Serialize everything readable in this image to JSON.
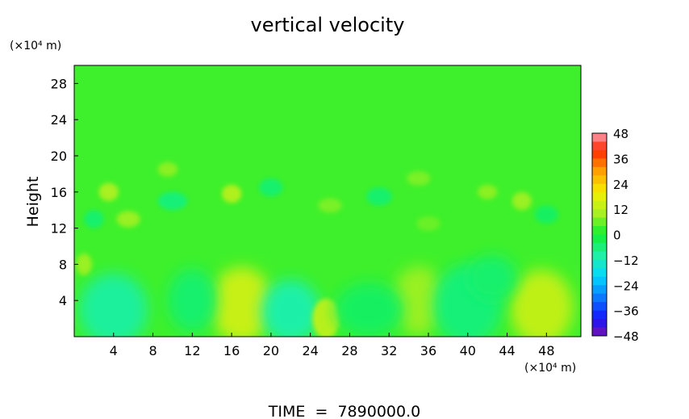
{
  "chart_data": {
    "type": "heatmap",
    "title": "vertical velocity",
    "ylabel": "Height",
    "xunit": "(×10⁴ m)",
    "yunit": "(×10⁴ m)",
    "footer": "TIME  =  7890000.0",
    "xlim": [
      0,
      51.5
    ],
    "ylim": [
      0,
      30
    ],
    "xticks": [
      4,
      8,
      12,
      16,
      20,
      24,
      28,
      32,
      36,
      40,
      44,
      48
    ],
    "yticks": [
      4,
      8,
      12,
      16,
      20,
      24,
      28
    ],
    "colorbar": {
      "ticks": [
        48,
        36,
        24,
        12,
        0,
        -12,
        -24,
        -36,
        -48
      ],
      "min": -48,
      "max": 48
    },
    "background_value": 3,
    "features": [
      {
        "x": 17.0,
        "y": 3.5,
        "rx": 3.2,
        "ry": 4.2,
        "value": 14
      },
      {
        "x": 47.5,
        "y": 3.2,
        "rx": 3.2,
        "ry": 4.2,
        "value": 13
      },
      {
        "x": 4.0,
        "y": 3.0,
        "rx": 3.5,
        "ry": 4.0,
        "value": -9
      },
      {
        "x": 22.0,
        "y": 2.8,
        "rx": 3.0,
        "ry": 3.5,
        "value": -10
      },
      {
        "x": 25.6,
        "y": 2.0,
        "rx": 1.4,
        "ry": 2.2,
        "value": 12
      },
      {
        "x": 35.0,
        "y": 4.0,
        "rx": 2.6,
        "ry": 3.8,
        "value": 9
      },
      {
        "x": 40.0,
        "y": 3.5,
        "rx": 3.5,
        "ry": 4.5,
        "value": -6
      },
      {
        "x": 12.0,
        "y": 4.0,
        "rx": 2.5,
        "ry": 3.5,
        "value": -5
      },
      {
        "x": 30.0,
        "y": 3.0,
        "rx": 3.5,
        "ry": 3.0,
        "value": -4
      },
      {
        "x": 42.5,
        "y": 6.5,
        "rx": 2.5,
        "ry": 2.5,
        "value": -5
      },
      {
        "x": 1.0,
        "y": 8.0,
        "rx": 0.8,
        "ry": 1.2,
        "value": 9
      },
      {
        "x": 3.5,
        "y": 16.0,
        "rx": 1.0,
        "ry": 1.0,
        "value": 10
      },
      {
        "x": 16.0,
        "y": 15.8,
        "rx": 1.0,
        "ry": 1.0,
        "value": 11
      },
      {
        "x": 5.5,
        "y": 13.0,
        "rx": 1.2,
        "ry": 0.9,
        "value": 9
      },
      {
        "x": 9.5,
        "y": 18.5,
        "rx": 1.0,
        "ry": 0.8,
        "value": 8
      },
      {
        "x": 45.5,
        "y": 15.0,
        "rx": 1.0,
        "ry": 1.0,
        "value": 9
      },
      {
        "x": 42.0,
        "y": 16.0,
        "rx": 1.0,
        "ry": 0.8,
        "value": 8
      },
      {
        "x": 26.0,
        "y": 14.5,
        "rx": 1.2,
        "ry": 0.8,
        "value": 7
      },
      {
        "x": 35.0,
        "y": 17.5,
        "rx": 1.2,
        "ry": 0.8,
        "value": 7
      },
      {
        "x": 10.0,
        "y": 15.0,
        "rx": 1.5,
        "ry": 1.0,
        "value": -6
      },
      {
        "x": 20.0,
        "y": 16.5,
        "rx": 1.2,
        "ry": 1.0,
        "value": -5
      },
      {
        "x": 31.0,
        "y": 15.5,
        "rx": 1.3,
        "ry": 1.0,
        "value": -5
      },
      {
        "x": 48.0,
        "y": 13.5,
        "rx": 1.2,
        "ry": 1.0,
        "value": -4
      },
      {
        "x": 2.0,
        "y": 13.0,
        "rx": 1.0,
        "ry": 1.0,
        "value": -5
      },
      {
        "x": 36.0,
        "y": 12.5,
        "rx": 1.2,
        "ry": 0.8,
        "value": 6
      }
    ]
  }
}
